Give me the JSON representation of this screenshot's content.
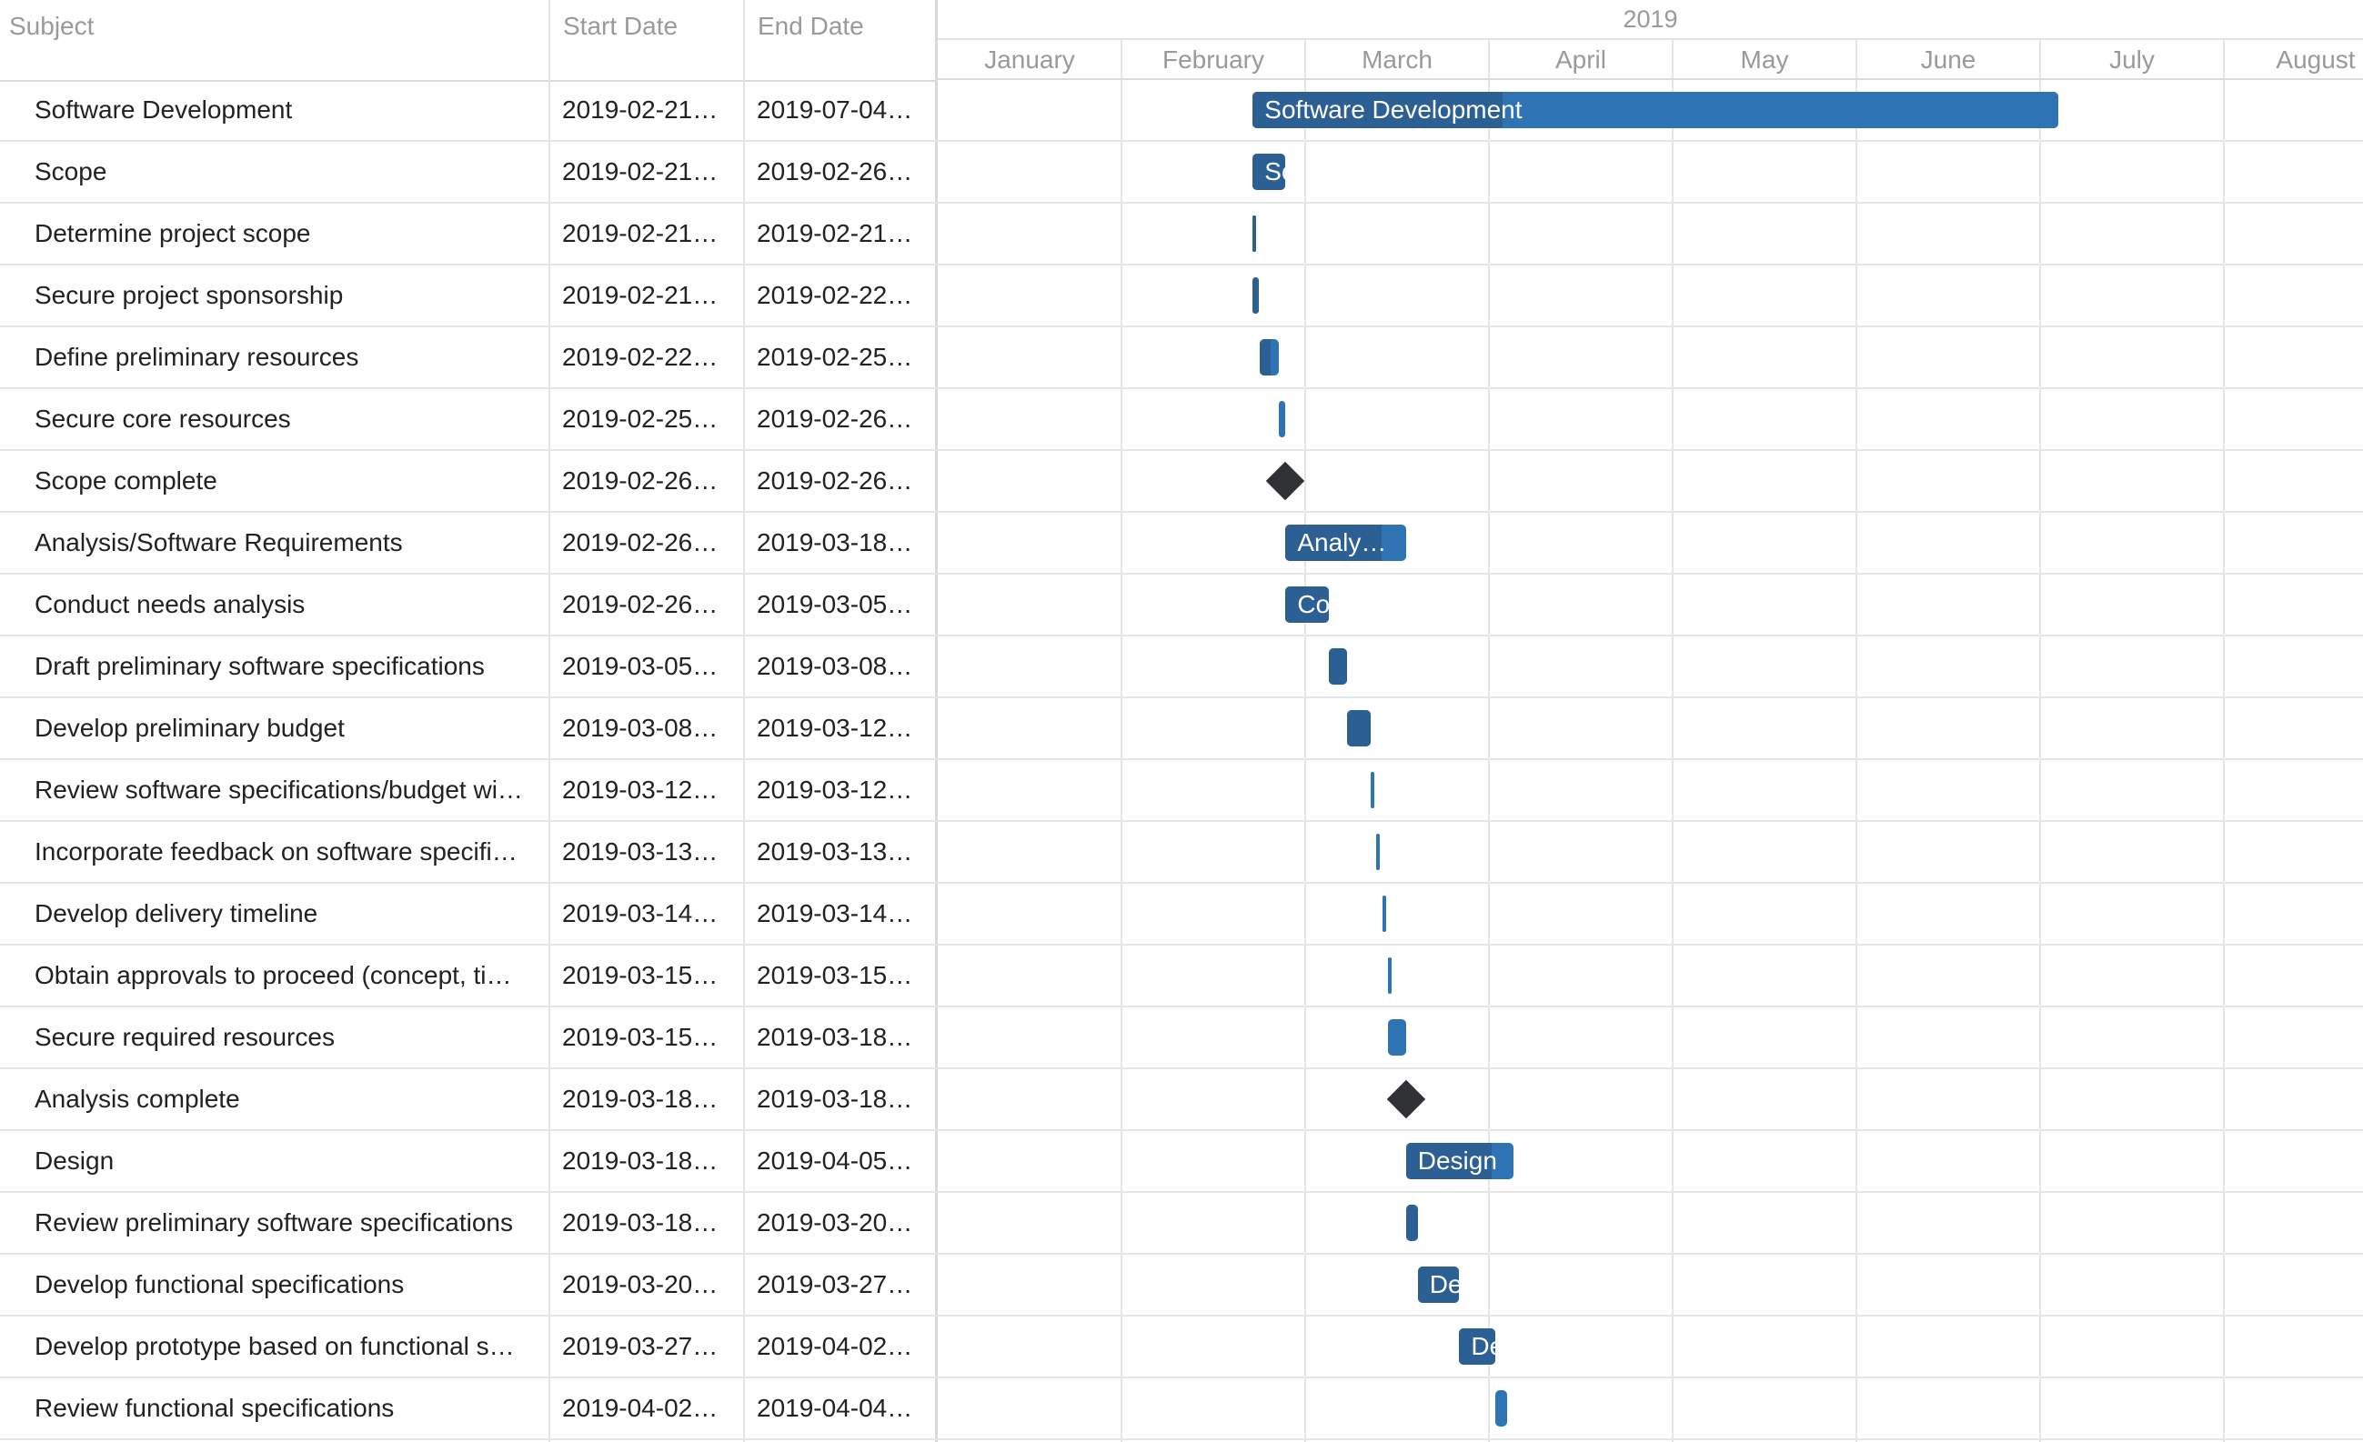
{
  "grid": {
    "headers": {
      "subject": "Subject",
      "start": "Start Date",
      "end": "End Date"
    }
  },
  "timeline": {
    "year": "2019",
    "months": [
      "January",
      "February",
      "March",
      "April",
      "May",
      "June",
      "July",
      "August"
    ]
  },
  "colors": {
    "bar": "#2e73b3",
    "bar_progress": "#2c5f94",
    "milestone": "#2f3134",
    "grid_line": "#e4e6e8"
  },
  "tasks": [
    {
      "subject": "Software Development",
      "start_display": "2019-02-21…",
      "end_display": "2019-07-04…",
      "start_date": "2019-02-21",
      "end_date": "2019-07-04",
      "type": "summary",
      "bar_label": "Software Development",
      "progress": 0.31
    },
    {
      "subject": "Scope",
      "start_display": "2019-02-21…",
      "end_display": "2019-02-26…",
      "start_date": "2019-02-21",
      "end_date": "2019-02-26",
      "type": "summary",
      "bar_label": "So",
      "progress": 1.0
    },
    {
      "subject": "Determine project scope",
      "start_display": "2019-02-21…",
      "end_display": "2019-02-21…",
      "start_date": "2019-02-21",
      "end_date": "2019-02-21",
      "type": "task",
      "bar_label": "",
      "progress": 1.0
    },
    {
      "subject": "Secure project sponsorship",
      "start_display": "2019-02-21…",
      "end_display": "2019-02-22…",
      "start_date": "2019-02-21",
      "end_date": "2019-02-22",
      "type": "task",
      "bar_label": "",
      "progress": 1.0
    },
    {
      "subject": "Define preliminary resources",
      "start_display": "2019-02-22…",
      "end_display": "2019-02-25…",
      "start_date": "2019-02-22",
      "end_date": "2019-02-25",
      "type": "task",
      "bar_label": "",
      "progress": 0.6
    },
    {
      "subject": "Secure core resources",
      "start_display": "2019-02-25…",
      "end_display": "2019-02-26…",
      "start_date": "2019-02-25",
      "end_date": "2019-02-26",
      "type": "task",
      "bar_label": "",
      "progress": 0.0
    },
    {
      "subject": "Scope complete",
      "start_display": "2019-02-26…",
      "end_display": "2019-02-26…",
      "start_date": "2019-02-26",
      "end_date": "2019-02-26",
      "type": "milestone",
      "bar_label": "",
      "progress": 0
    },
    {
      "subject": "Analysis/Software Requirements",
      "start_display": "2019-02-26…",
      "end_display": "2019-03-18…",
      "start_date": "2019-02-26",
      "end_date": "2019-03-18",
      "type": "summary",
      "bar_label": "Analy…",
      "progress": 0.8
    },
    {
      "subject": "Conduct needs analysis",
      "start_display": "2019-02-26…",
      "end_display": "2019-03-05…",
      "start_date": "2019-02-26",
      "end_date": "2019-03-05",
      "type": "task",
      "bar_label": "Co",
      "progress": 1.0
    },
    {
      "subject": "Draft preliminary software specifications",
      "start_display": "2019-03-05…",
      "end_display": "2019-03-08…",
      "start_date": "2019-03-05",
      "end_date": "2019-03-08",
      "type": "task",
      "bar_label": "",
      "progress": 1.0
    },
    {
      "subject": "Develop preliminary budget",
      "start_display": "2019-03-08…",
      "end_display": "2019-03-12…",
      "start_date": "2019-03-08",
      "end_date": "2019-03-12",
      "type": "task",
      "bar_label": "",
      "progress": 1.0
    },
    {
      "subject": "Review software specifications/budget wi…",
      "start_display": "2019-03-12…",
      "end_display": "2019-03-12…",
      "start_date": "2019-03-12",
      "end_date": "2019-03-12",
      "type": "task",
      "bar_label": "",
      "progress": 0.0
    },
    {
      "subject": "Incorporate feedback on software specifi…",
      "start_display": "2019-03-13…",
      "end_display": "2019-03-13…",
      "start_date": "2019-03-13",
      "end_date": "2019-03-13",
      "type": "task",
      "bar_label": "",
      "progress": 0.0
    },
    {
      "subject": "Develop delivery timeline",
      "start_display": "2019-03-14…",
      "end_display": "2019-03-14…",
      "start_date": "2019-03-14",
      "end_date": "2019-03-14",
      "type": "task",
      "bar_label": "",
      "progress": 0.0
    },
    {
      "subject": "Obtain approvals to proceed (concept, ti…",
      "start_display": "2019-03-15…",
      "end_display": "2019-03-15…",
      "start_date": "2019-03-15",
      "end_date": "2019-03-15",
      "type": "task",
      "bar_label": "",
      "progress": 0.0
    },
    {
      "subject": "Secure required resources",
      "start_display": "2019-03-15…",
      "end_display": "2019-03-18…",
      "start_date": "2019-03-15",
      "end_date": "2019-03-18",
      "type": "task",
      "bar_label": "",
      "progress": 0.0
    },
    {
      "subject": "Analysis complete",
      "start_display": "2019-03-18…",
      "end_display": "2019-03-18…",
      "start_date": "2019-03-18",
      "end_date": "2019-03-18",
      "type": "milestone",
      "bar_label": "",
      "progress": 0
    },
    {
      "subject": "Design",
      "start_display": "2019-03-18…",
      "end_display": "2019-04-05…",
      "start_date": "2019-03-18",
      "end_date": "2019-04-05",
      "type": "summary",
      "bar_label": "Design",
      "progress": 0.8
    },
    {
      "subject": "Review preliminary software specifications",
      "start_display": "2019-03-18…",
      "end_display": "2019-03-20…",
      "start_date": "2019-03-18",
      "end_date": "2019-03-20",
      "type": "task",
      "bar_label": "",
      "progress": 1.0
    },
    {
      "subject": "Develop functional specifications",
      "start_display": "2019-03-20…",
      "end_display": "2019-03-27…",
      "start_date": "2019-03-20",
      "end_date": "2019-03-27",
      "type": "task",
      "bar_label": "De",
      "progress": 1.0
    },
    {
      "subject": "Develop prototype based on functional s…",
      "start_display": "2019-03-27…",
      "end_display": "2019-04-02…",
      "start_date": "2019-03-27",
      "end_date": "2019-04-02",
      "type": "task",
      "bar_label": "De",
      "progress": 1.0
    },
    {
      "subject": "Review functional specifications",
      "start_display": "2019-04-02…",
      "end_display": "2019-04-04…",
      "start_date": "2019-04-02",
      "end_date": "2019-04-04",
      "type": "task",
      "bar_label": "",
      "progress": 0.0
    }
  ]
}
